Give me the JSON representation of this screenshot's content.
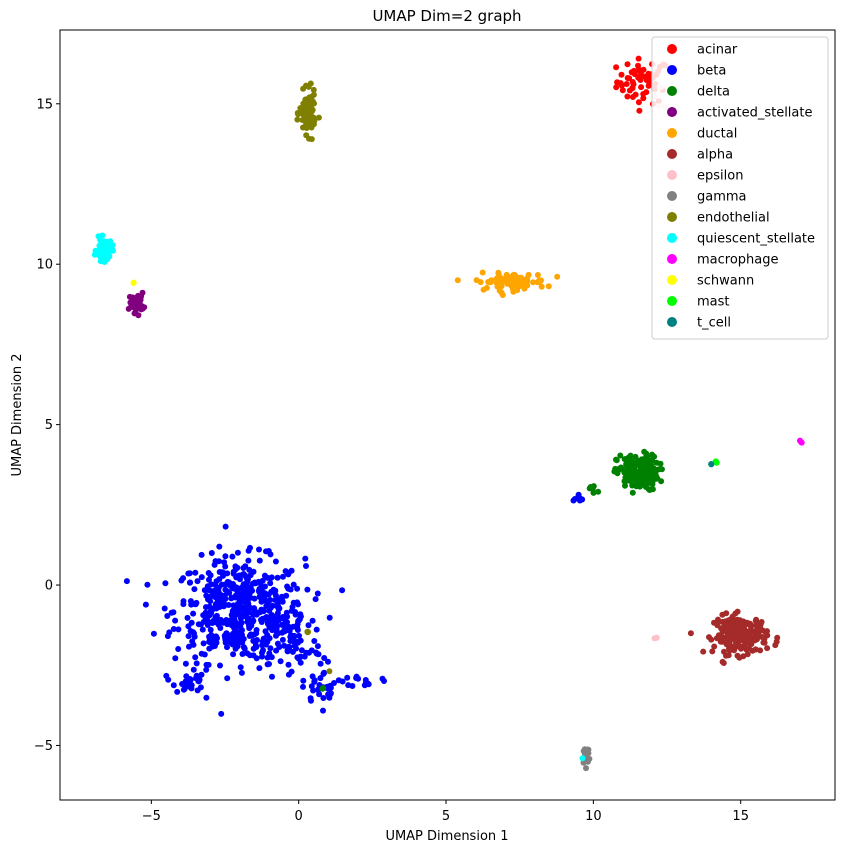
{
  "chart_data": {
    "type": "scatter",
    "title": "UMAP Dim=2 graph",
    "xlabel": "UMAP Dimension 1",
    "ylabel": "UMAP Dimension 2",
    "xlim": [
      -8.1,
      18.2
    ],
    "ylim": [
      -6.7,
      17.3
    ],
    "xticks": [
      -5,
      0,
      5,
      10,
      15
    ],
    "yticks": [
      -5,
      0,
      5,
      10,
      15
    ],
    "grid": false,
    "legend_position": "top-right",
    "series": [
      {
        "name": "acinar",
        "color": "#ff0000",
        "clusters": [
          {
            "cx": 11.7,
            "cy": 15.7,
            "sx": 0.45,
            "sy": 0.35,
            "n": 60
          }
        ]
      },
      {
        "name": "beta",
        "color": "#0000ff",
        "clusters": [
          {
            "cx": -2.0,
            "cy": -0.8,
            "sx": 1.1,
            "sy": 0.8,
            "n": 520
          },
          {
            "cx": -0.2,
            "cy": -1.9,
            "sx": 0.5,
            "sy": 0.6,
            "n": 70
          },
          {
            "cx": 0.9,
            "cy": -3.2,
            "sx": 0.4,
            "sy": 0.25,
            "n": 30
          },
          {
            "cx": -3.7,
            "cy": -3.0,
            "sx": 0.25,
            "sy": 0.2,
            "n": 25
          },
          {
            "cx": 2.3,
            "cy": -3.0,
            "sx": 0.25,
            "sy": 0.1,
            "n": 14
          },
          {
            "cx": 9.5,
            "cy": 2.75,
            "sx": 0.12,
            "sy": 0.06,
            "n": 8
          }
        ]
      },
      {
        "name": "delta",
        "color": "#008000",
        "clusters": [
          {
            "cx": 11.5,
            "cy": 3.5,
            "sx": 0.35,
            "sy": 0.28,
            "n": 170
          },
          {
            "cx": 10.0,
            "cy": 3.0,
            "sx": 0.15,
            "sy": 0.08,
            "n": 8
          },
          {
            "cx": 0.85,
            "cy": -3.2,
            "sx": 0.05,
            "sy": 0.05,
            "n": 2
          }
        ]
      },
      {
        "name": "activated_stellate",
        "color": "#800080",
        "clusters": [
          {
            "cx": -5.5,
            "cy": 8.8,
            "sx": 0.12,
            "sy": 0.15,
            "n": 40
          }
        ]
      },
      {
        "name": "ductal",
        "color": "#ffa500",
        "clusters": [
          {
            "cx": 7.2,
            "cy": 9.45,
            "sx": 0.6,
            "sy": 0.13,
            "n": 80
          }
        ]
      },
      {
        "name": "alpha",
        "color": "#a52a2a",
        "clusters": [
          {
            "cx": 15.0,
            "cy": -1.55,
            "sx": 0.45,
            "sy": 0.3,
            "n": 190
          }
        ]
      },
      {
        "name": "epsilon",
        "color": "#ffc0cb",
        "clusters": [
          {
            "cx": 12.1,
            "cy": -1.65,
            "sx": 0.03,
            "sy": 0.03,
            "n": 3
          },
          {
            "cx": 12.2,
            "cy": 15.0,
            "sx": 0.1,
            "sy": 0.2,
            "n": 4
          }
        ]
      },
      {
        "name": "gamma",
        "color": "#808080",
        "clusters": [
          {
            "cx": 9.75,
            "cy": -5.3,
            "sx": 0.07,
            "sy": 0.17,
            "n": 20
          }
        ]
      },
      {
        "name": "endothelial",
        "color": "#808000",
        "clusters": [
          {
            "cx": 0.3,
            "cy": 14.7,
            "sx": 0.13,
            "sy": 0.32,
            "n": 90
          },
          {
            "cx": 0.3,
            "cy": -1.5,
            "sx": 0.05,
            "sy": 0.05,
            "n": 3
          },
          {
            "cx": 1.0,
            "cy": -2.7,
            "sx": 0.03,
            "sy": 0.03,
            "n": 1
          }
        ]
      },
      {
        "name": "quiescent_stellate",
        "color": "#00ffff",
        "clusters": [
          {
            "cx": -6.6,
            "cy": 10.45,
            "sx": 0.13,
            "sy": 0.17,
            "n": 60
          },
          {
            "cx": 9.6,
            "cy": -5.4,
            "sx": 0.03,
            "sy": 0.03,
            "n": 1
          }
        ]
      },
      {
        "name": "macrophage",
        "color": "#ff00ff",
        "clusters": [
          {
            "cx": 17.05,
            "cy": 4.45,
            "sx": 0.03,
            "sy": 0.03,
            "n": 3
          }
        ]
      },
      {
        "name": "schwann",
        "color": "#ffff00",
        "clusters": [
          {
            "cx": -5.6,
            "cy": 9.45,
            "sx": 0.03,
            "sy": 0.03,
            "n": 2
          }
        ]
      },
      {
        "name": "mast",
        "color": "#00ff00",
        "clusters": [
          {
            "cx": 14.2,
            "cy": 3.85,
            "sx": 0.04,
            "sy": 0.03,
            "n": 3
          }
        ]
      },
      {
        "name": "t_cell",
        "color": "#008080",
        "clusters": [
          {
            "cx": 14.0,
            "cy": 3.78,
            "sx": 0.02,
            "sy": 0.02,
            "n": 2
          }
        ]
      }
    ]
  }
}
